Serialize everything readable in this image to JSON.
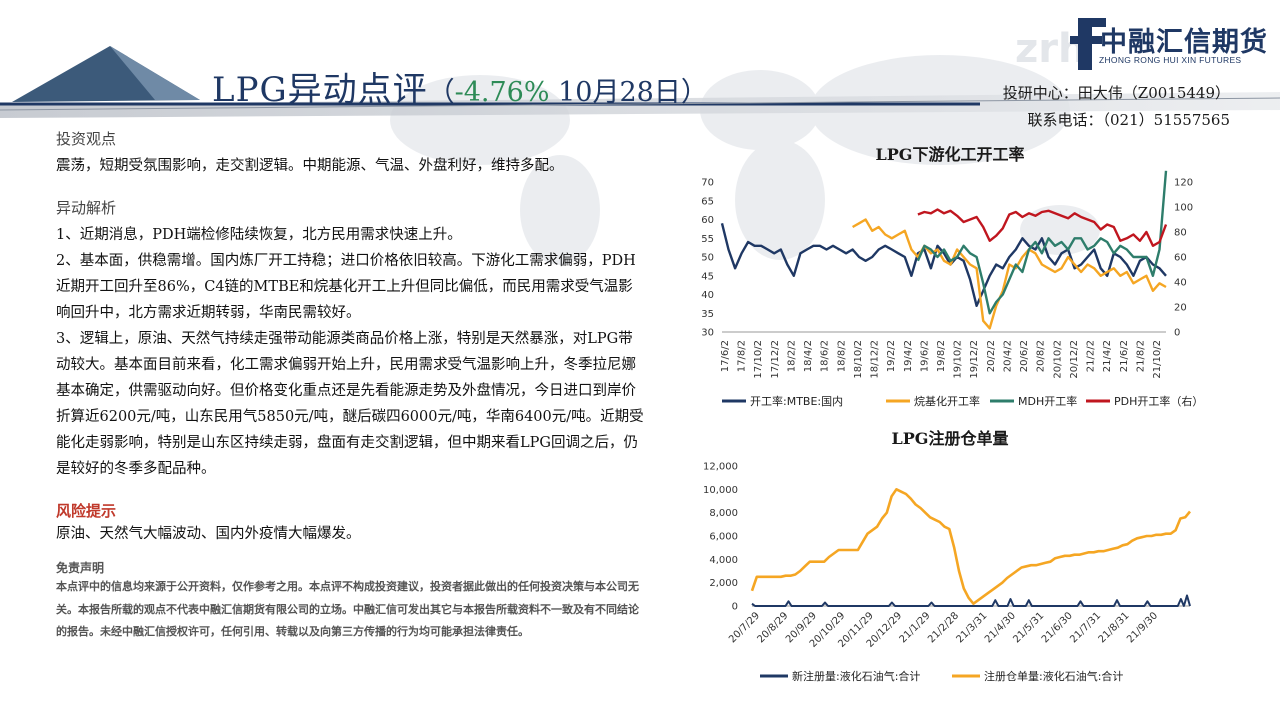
{
  "header": {
    "title": "LPG异动点评",
    "subtitle_open": "（",
    "change_pct": "-4.76%",
    "date": " 10月28日）",
    "logo_name": "中融汇信期货",
    "logo_en": "ZHONG RONG HUI XIN FUTURES",
    "contact_line1": "投研中心：田大伟（Z0015449）",
    "contact_line2": "联系电话：（021）51557565"
  },
  "content": {
    "view_heading": "投资观点",
    "view_text": "震荡，短期受氛围影响，走交割逻辑。中期能源、气温、外盘利好，维持多配。",
    "analysis_heading": "异动解析",
    "analysis_p1": "1、近期消息，PDH端检修陆续恢复，北方民用需求快速上升。",
    "analysis_p2": "2、基本面，供稳需增。国内炼厂开工持稳；进口价格依旧较高。下游化工需求偏弱，PDH近期开工回升至86%，C4链的MTBE和烷基化开工上升但同比偏低，而民用需求受气温影响回升中，北方需求近期转弱，华南民需较好。",
    "analysis_p3": "3、逻辑上，原油、天然气持续走强带动能源类商品价格上涨，特别是天然暴涨，对LPG带动较大。基本面目前来看，化工需求偏弱开始上升，民用需求受气温影响上升，冬季拉尼娜基本确定，供需驱动向好。但价格变化重点还是先看能源走势及外盘情况，今日进口到岸价折算近6200元/吨，山东民用气5850元/吨，醚后碳四6000元/吨，华南6400元/吨。近期受能化走弱影响，特别是山东区持续走弱，盘面有走交割逻辑，但中期来看LPG回调之后，仍是较好的冬季多配品种。",
    "risk_heading": "风险提示",
    "risk_text": "原油、天然气大幅波动、国内外疫情大幅爆发。",
    "disclaimer_heading": "免责声明",
    "disclaimer_text": "本点评中的信息均来源于公开资料，仅作参考之用。本点评不构成投资建议，投资者据此做出的任何投资决策与本公司无关。本报告所载的观点不代表中融汇信期货有限公司的立场。中融汇信可发出其它与本报告所载资料不一致及有不同结论的报告。未经中融汇信授权许可，任何引用、转载以及向第三方传播的行为均可能承担法律责任。"
  },
  "colors": {
    "navy": "#1f3864",
    "orange": "#f5a623",
    "teal": "#2e7d6b",
    "red": "#c0161f",
    "green_pct": "#2e8b57"
  },
  "chart_data": [
    {
      "type": "line",
      "title": "LPG下游化工开工率",
      "x_ticks": [
        "17/6/2",
        "17/8/2",
        "17/10/2",
        "17/12/2",
        "18/2/2",
        "18/4/2",
        "18/6/2",
        "18/8/2",
        "18/10/2",
        "18/12/2",
        "19/2/2",
        "19/4/2",
        "19/6/2",
        "19/8/2",
        "19/10/2",
        "19/12/2",
        "20/2/2",
        "20/4/2",
        "20/6/2",
        "20/8/2",
        "20/10/2",
        "20/12/2",
        "21/2/2",
        "21/4/2",
        "21/6/2",
        "21/8/2",
        "21/10/2"
      ],
      "y_left_ticks": [
        "70",
        "65",
        "60",
        "55",
        "50",
        "45",
        "40",
        "35",
        "30"
      ],
      "y_right_ticks": [
        "120",
        "100",
        "80",
        "60",
        "40",
        "20",
        "0"
      ],
      "ylim_left": [
        30,
        70
      ],
      "ylim_right": [
        0,
        120
      ],
      "legend_position": "bottom",
      "series": [
        {
          "name": "开工率:MTBE:国内",
          "axis": "left",
          "color": "#1f3864",
          "values": [
            59,
            52,
            47,
            51,
            54,
            53,
            53,
            52,
            51,
            52,
            48,
            45,
            51,
            52,
            53,
            53,
            52,
            53,
            52,
            51,
            52,
            50,
            49,
            50,
            52,
            53,
            52,
            51,
            50,
            45,
            51,
            52,
            47,
            53,
            51,
            48,
            50,
            49,
            44,
            37,
            41,
            45,
            48,
            47,
            50,
            52,
            55,
            53,
            52,
            55,
            50,
            48,
            51,
            52,
            47,
            48,
            50,
            52,
            47,
            45,
            51,
            50,
            48,
            45,
            49,
            50,
            48,
            47,
            45
          ]
        },
        {
          "name": "烷基化开工率",
          "axis": "left",
          "color": "#f5a623",
          "values": [
            null,
            null,
            null,
            null,
            null,
            null,
            null,
            null,
            null,
            null,
            null,
            null,
            null,
            null,
            null,
            null,
            null,
            null,
            null,
            null,
            58,
            59,
            60,
            57,
            58,
            56,
            55,
            56,
            57,
            52,
            50,
            53,
            51,
            52,
            49,
            48,
            52,
            50,
            48,
            47,
            33,
            31,
            37,
            41,
            48,
            47,
            50,
            52,
            51,
            48,
            47,
            46,
            47,
            50,
            48,
            46,
            48,
            47,
            45,
            46,
            47,
            45,
            46,
            43,
            44,
            45,
            41,
            43,
            42
          ]
        },
        {
          "name": "MDH开工率",
          "axis": "left",
          "color": "#2e7d6b",
          "values": [
            null,
            null,
            null,
            null,
            null,
            null,
            null,
            null,
            null,
            null,
            null,
            null,
            null,
            null,
            null,
            null,
            null,
            null,
            null,
            null,
            null,
            null,
            null,
            null,
            null,
            null,
            null,
            null,
            null,
            null,
            49,
            53,
            52,
            50,
            52,
            49,
            50,
            53,
            51,
            50,
            43,
            35,
            38,
            40,
            44,
            48,
            46,
            52,
            54,
            51,
            55,
            53,
            54,
            52,
            55,
            55,
            52,
            53,
            55,
            54,
            51,
            53,
            52,
            50,
            50,
            50,
            45,
            52,
            73
          ]
        },
        {
          "name": "PDH开工率（右）",
          "axis": "right",
          "color": "#c0161f",
          "values": [
            null,
            null,
            null,
            null,
            null,
            null,
            null,
            null,
            null,
            null,
            null,
            null,
            null,
            null,
            null,
            null,
            null,
            null,
            null,
            null,
            null,
            null,
            null,
            null,
            null,
            null,
            null,
            null,
            null,
            null,
            94,
            96,
            95,
            98,
            95,
            97,
            93,
            88,
            90,
            92,
            84,
            73,
            77,
            83,
            94,
            96,
            92,
            95,
            93,
            96,
            97,
            95,
            93,
            91,
            95,
            92,
            90,
            88,
            82,
            86,
            84,
            73,
            75,
            78,
            73,
            80,
            69,
            72,
            86
          ]
        }
      ]
    },
    {
      "type": "line",
      "title": "LPG注册仓单量",
      "x_ticks": [
        "20/7/29",
        "20/8/29",
        "20/9/29",
        "20/10/29",
        "20/11/29",
        "20/12/29",
        "21/1/29",
        "21/2/28",
        "21/3/31",
        "21/4/30",
        "21/5/31",
        "21/6/30",
        "21/7/31",
        "21/8/31",
        "21/9/30"
      ],
      "y_ticks": [
        "12,000",
        "10,000",
        "8,000",
        "6,000",
        "4,000",
        "2,000",
        "0"
      ],
      "ylim": [
        0,
        12000
      ],
      "legend_position": "bottom",
      "series": [
        {
          "name": "新注册量:液化石油气:合计",
          "color": "#1f3864",
          "values": [
            200,
            0,
            0,
            0,
            0,
            0,
            0,
            0,
            0,
            0,
            0,
            0,
            400,
            0,
            0,
            0,
            0,
            0,
            0,
            0,
            0,
            0,
            0,
            0,
            300,
            0,
            0,
            0,
            0,
            0,
            0,
            0,
            0,
            0,
            0,
            0,
            0,
            0,
            0,
            0,
            0,
            0,
            0,
            0,
            0,
            0,
            300,
            0,
            0,
            0,
            0,
            0,
            0,
            0,
            0,
            0,
            0,
            0,
            0,
            300,
            0,
            0,
            0,
            0,
            0,
            0,
            0,
            0,
            0,
            0,
            0,
            0,
            0,
            0,
            0,
            0,
            0,
            0,
            0,
            0,
            500,
            0,
            0,
            0,
            0,
            600,
            0,
            0,
            0,
            0,
            0,
            500,
            0,
            0,
            0,
            0,
            0,
            0,
            0,
            0,
            0,
            0,
            0,
            0,
            0,
            0,
            0,
            0,
            400,
            0,
            0,
            0,
            0,
            0,
            0,
            0,
            0,
            0,
            0,
            0,
            500,
            0,
            0,
            0,
            0,
            0,
            0,
            0,
            0,
            0,
            400,
            0,
            0,
            0,
            0,
            0,
            0,
            0,
            0,
            0,
            0,
            600,
            0,
            900,
            0
          ]
        },
        {
          "name": "注册仓单量:液化石油气:合计",
          "color": "#f5a623",
          "values": [
            1300,
            2500,
            2500,
            2500,
            2500,
            2500,
            2500,
            2600,
            2600,
            2700,
            3000,
            3400,
            3800,
            3800,
            3800,
            3800,
            4200,
            4500,
            4800,
            4800,
            4800,
            4800,
            4800,
            5500,
            6200,
            6500,
            6800,
            7500,
            8000,
            9400,
            10000,
            9800,
            9600,
            9200,
            8700,
            8400,
            8000,
            7600,
            7400,
            7200,
            6800,
            6600,
            5000,
            3000,
            1500,
            700,
            200,
            500,
            800,
            1100,
            1400,
            1700,
            2000,
            2400,
            2700,
            3000,
            3300,
            3400,
            3500,
            3500,
            3600,
            3700,
            3800,
            4100,
            4200,
            4300,
            4300,
            4400,
            4400,
            4500,
            4600,
            4600,
            4700,
            4700,
            4800,
            4900,
            5000,
            5200,
            5300,
            5600,
            5800,
            5900,
            6000,
            6000,
            6100,
            6100,
            6200,
            6200,
            6500,
            7500,
            7600,
            8100
          ]
        }
      ]
    }
  ]
}
